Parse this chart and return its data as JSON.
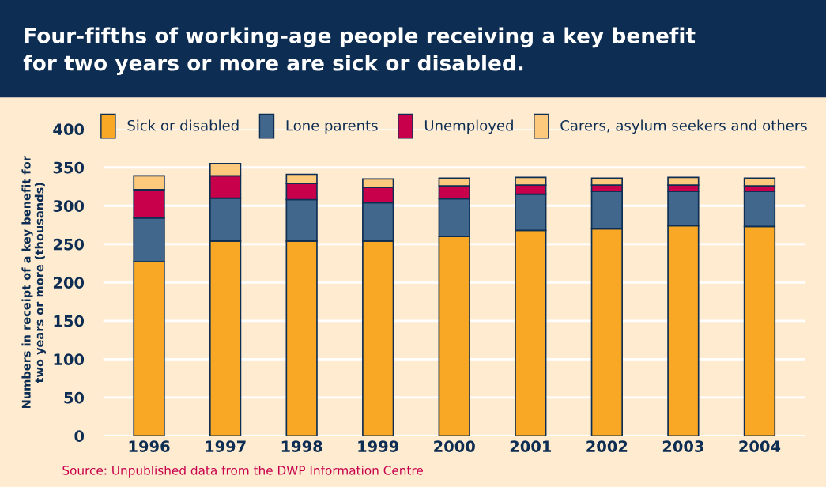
{
  "chart_data": {
    "type": "bar",
    "stacked": true,
    "title": "Four-fifths of working-age people receiving a key benefit\nfor two years or more are sick or disabled.",
    "ylabel": "Numbers in receipt of a key benefit for\ntwo years or more (thousands)",
    "categories": [
      "1996",
      "1997",
      "1998",
      "1999",
      "2000",
      "2001",
      "2002",
      "2003",
      "2004"
    ],
    "series": [
      {
        "name": "Sick or disabled",
        "color": "#f9a825",
        "values": [
          227,
          254,
          254,
          254,
          260,
          268,
          270,
          274,
          273
        ]
      },
      {
        "name": "Lone parents",
        "color": "#41678d",
        "values": [
          57,
          56,
          54,
          50,
          49,
          47,
          49,
          45,
          46
        ]
      },
      {
        "name": "Unemployed",
        "color": "#c8004c",
        "values": [
          37,
          29,
          21,
          20,
          17,
          12,
          8,
          8,
          7
        ]
      },
      {
        "name": "Carers, asylum seekers and others",
        "color": "#fdc97c",
        "values": [
          18,
          16,
          12,
          11,
          10,
          10,
          9,
          10,
          10
        ]
      }
    ],
    "ylim": [
      0,
      400
    ],
    "yticks": [
      0,
      50,
      100,
      150,
      200,
      250,
      300,
      350,
      400
    ],
    "grid": "y",
    "legend": "top",
    "annotations": [
      "Source: Unpublished data from the DWP Information Centre"
    ]
  }
}
